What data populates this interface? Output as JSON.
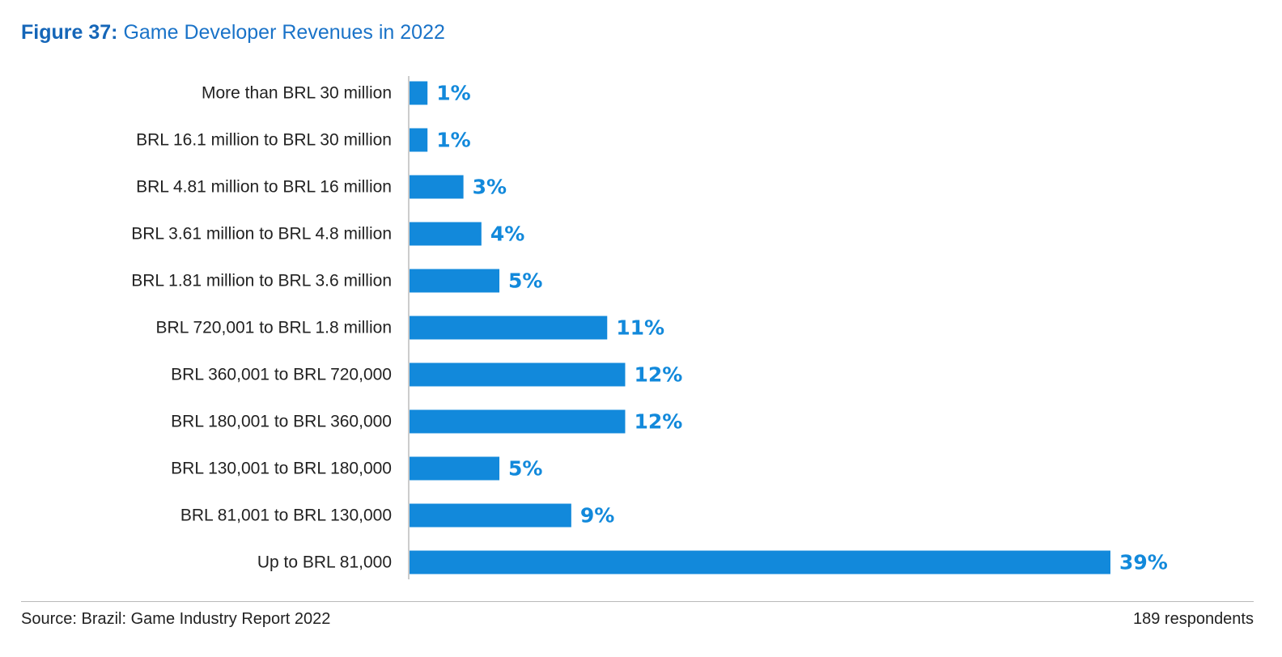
{
  "figure": {
    "label": "Figure 37:",
    "title": "Game Developer Revenues in 2022"
  },
  "colors": {
    "bar": "#1289db",
    "value_label": "#1289db",
    "title_label": "#1566b8",
    "title_text": "#1a73c8",
    "category_text": "#222222",
    "axis_line": "#9a9a9a"
  },
  "chart_data": {
    "type": "bar",
    "orientation": "horizontal",
    "categories": [
      "More than BRL 30 million",
      "BRL 16.1 million to BRL 30 million",
      "BRL 4.81 million to BRL 16 million",
      "BRL 3.61 million to BRL 4.8 million",
      "BRL 1.81 million to BRL 3.6 million",
      "BRL 720,001 to BRL 1.8 million",
      "BRL 360,001 to BRL 720,000",
      "BRL 180,001 to BRL 360,000",
      "BRL 130,001 to BRL 180,000",
      "BRL 81,001 to BRL 130,000",
      "Up to BRL 81,000"
    ],
    "values": [
      1,
      1,
      3,
      4,
      5,
      11,
      12,
      12,
      5,
      9,
      39
    ],
    "value_labels": [
      "1%",
      "1%",
      "3%",
      "4%",
      "5%",
      "11%",
      "12%",
      "12%",
      "5%",
      "9%",
      "39%"
    ],
    "unit": "%",
    "xlim": [
      0,
      39
    ],
    "grid": false,
    "legend": "none"
  },
  "footer": {
    "source": "Source: Brazil: Game Industry Report 2022",
    "respondents": "189 respondents"
  }
}
